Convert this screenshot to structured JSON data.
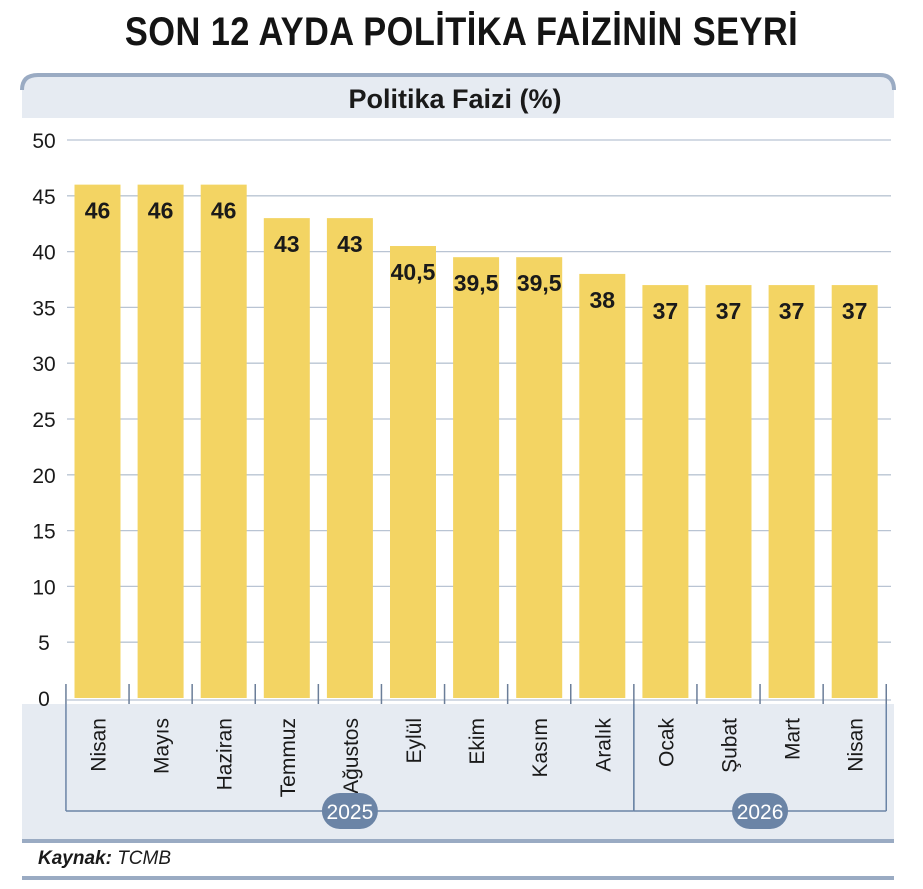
{
  "title": "SON 12 AYDA POLİTİKA FAİZİNİN SEYRİ",
  "colors": {
    "bar": "#f3d463",
    "panel": "#e6ebf2",
    "frame": "#9aabc3",
    "year_badge": "#6b84a6",
    "text": "#1a1a1a"
  },
  "chart_data": {
    "type": "bar",
    "title": "Politika Faizi (%)",
    "categories": [
      "Nisan",
      "Mayıs",
      "Haziran",
      "Temmuz",
      "Ağustos",
      "Eylül",
      "Ekim",
      "Kasım",
      "Aralık",
      "Ocak",
      "Şubat",
      "Mart",
      "Nisan"
    ],
    "values": [
      46,
      46,
      46,
      43,
      43,
      40.5,
      39.5,
      39.5,
      38,
      37,
      37,
      37,
      37
    ],
    "value_labels": [
      "46",
      "46",
      "46",
      "43",
      "43",
      "40,5",
      "39,5",
      "39,5",
      "38",
      "37",
      "37",
      "37",
      "37"
    ],
    "ylim": [
      0,
      50
    ],
    "yticks": [
      0,
      5,
      10,
      15,
      20,
      25,
      30,
      35,
      40,
      45,
      50
    ],
    "grid": true,
    "year_groups": [
      {
        "label": "2025",
        "from_index": 0,
        "to_index": 8
      },
      {
        "label": "2026",
        "from_index": 9,
        "to_index": 12
      }
    ]
  },
  "source": {
    "label": "Kaynak:",
    "value": "TCMB"
  }
}
